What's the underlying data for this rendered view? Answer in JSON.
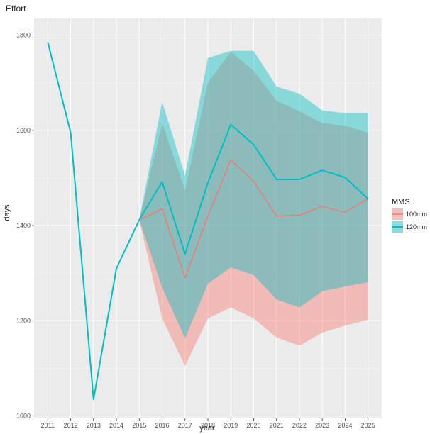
{
  "chart_data": {
    "type": "line",
    "title": "Effort",
    "xlabel": "year",
    "ylabel": "days",
    "x": [
      2011,
      2012,
      2013,
      2014,
      2015,
      2016,
      2017,
      2018,
      2019,
      2020,
      2021,
      2022,
      2023,
      2024,
      2025
    ],
    "x_tick_labels": [
      "2011",
      "2012",
      "2013",
      "2014",
      "2015",
      "2016",
      "2017",
      "2018",
      "2019",
      "2020",
      "2021",
      "2022",
      "2023",
      "2024",
      "2025"
    ],
    "y_ticks": [
      1000,
      1200,
      1400,
      1600,
      1800
    ],
    "y_tick_labels": [
      "1000",
      "1200",
      "1400",
      "1600",
      "1800"
    ],
    "ylim": [
      995,
      1835
    ],
    "grid": true,
    "background": "#ebebeb",
    "legend": {
      "title": "MMS",
      "position": "right"
    },
    "series": [
      {
        "name": "100mm",
        "line_color": "#f8766d",
        "fill_color": "#f8766d",
        "values": [
          1785,
          1595,
          1035,
          1310,
          1412,
          1435,
          1290,
          1420,
          1538,
          1493,
          1420,
          1422,
          1440,
          1428,
          1456
        ],
        "lower": [
          1785,
          1595,
          1035,
          1310,
          1412,
          1205,
          1105,
          1205,
          1228,
          1205,
          1165,
          1148,
          1175,
          1190,
          1202
        ],
        "upper": [
          1785,
          1595,
          1035,
          1310,
          1412,
          1615,
          1475,
          1700,
          1765,
          1725,
          1662,
          1640,
          1615,
          1610,
          1595
        ]
      },
      {
        "name": "120mm",
        "line_color": "#00bfc4",
        "fill_color": "#00bfc4",
        "values": [
          1785,
          1595,
          1035,
          1310,
          1412,
          1492,
          1340,
          1490,
          1612,
          1570,
          1497,
          1497,
          1516,
          1501,
          1456
        ],
        "lower": [
          1785,
          1595,
          1035,
          1310,
          1412,
          1270,
          1163,
          1278,
          1312,
          1296,
          1245,
          1228,
          1262,
          1272,
          1281
        ],
        "upper": [
          1785,
          1595,
          1035,
          1310,
          1412,
          1660,
          1505,
          1752,
          1767,
          1767,
          1692,
          1677,
          1642,
          1636,
          1636
        ]
      }
    ]
  }
}
